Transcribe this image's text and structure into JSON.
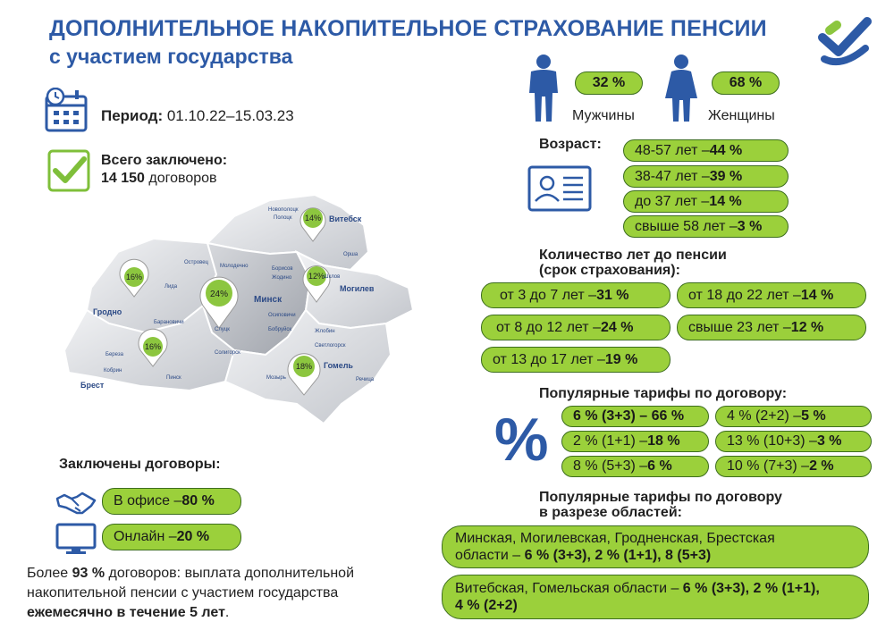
{
  "title": {
    "line1": "ДОПОЛНИТЕЛЬНОЕ НАКОПИТЕЛЬНОЕ СТРАХОВАНИЕ ПЕНСИИ",
    "line2": "с участием государства"
  },
  "colors": {
    "accent_blue": "#2d5aa6",
    "pill_green": "#9bd03b",
    "pill_border": "#3d6e1e",
    "logo_green": "#8cc63f"
  },
  "period": {
    "label": "Период:",
    "value": " 01.10.22–15.03.23",
    "icon": "calendar-icon"
  },
  "total": {
    "label": "Всего заключено:",
    "count": "14 150",
    "unit": " договоров",
    "icon": "checkmark-icon"
  },
  "gender": {
    "men": {
      "percent": "32 %",
      "label": "Мужчины",
      "icon": "man-icon"
    },
    "women": {
      "percent": "68 %",
      "label": "Женщины",
      "icon": "woman-icon"
    }
  },
  "age": {
    "label": "Возраст:",
    "icon": "id-card-icon",
    "items": [
      {
        "text": "48-57 лет  – ",
        "value": "44 %"
      },
      {
        "text": "38-47 лет – ",
        "value": "39 %"
      },
      {
        "text": "до 37 лет – ",
        "value": "14 %"
      },
      {
        "text": "свыше 58 лет – ",
        "value": "3 %"
      }
    ]
  },
  "years": {
    "label_line1": "Количество лет до пенсии",
    "label_line2": "(срок страхования):",
    "items": [
      {
        "text": "от 3 до 7 лет – ",
        "value": "31 %"
      },
      {
        "text": "от 18 до 22 лет – ",
        "value": "14 %"
      },
      {
        "text": "от 8 до 12 лет – ",
        "value": "24 %"
      },
      {
        "text": "свыше 23 лет – ",
        "value": "12 %"
      },
      {
        "text": "от 13 до 17 лет – ",
        "value": "19 %"
      }
    ]
  },
  "tariffs": {
    "label": "Популярные тарифы по договору:",
    "icon": "percent-icon",
    "symbol": "%",
    "items": [
      {
        "text": "6 % (3+3) – 66 %",
        "bold_all": true
      },
      {
        "text": "4 % (2+2) – ",
        "value": "5 %"
      },
      {
        "text": "2 % (1+1) – ",
        "value": "18 %"
      },
      {
        "text": "13 % (10+3) – ",
        "value": "3 %"
      },
      {
        "text": "8 % (5+3) – ",
        "value": "6 %"
      },
      {
        "text": "10 % (7+3) – ",
        "value": "2 %"
      }
    ]
  },
  "regional": {
    "label_line1": "Популярные тарифы по договору",
    "label_line2": "в разрезе областей:",
    "group1": {
      "line1": "Минская, Могилевская, Гродненская, Брестская",
      "line2_prefix": "области – ",
      "line2_values": "6 %  (3+3), 2 % (1+1), 8 (5+3)"
    },
    "group2": {
      "line1_prefix": "Витебская, Гомельская области – ",
      "line1_values": "6 %  (3+3), 2 % (1+1),",
      "line2_values": "4 % (2+2)"
    }
  },
  "contracts": {
    "label": "Заключены договоры:",
    "office": {
      "text": "В офисе – ",
      "value": "80 %",
      "icon": "handshake-icon"
    },
    "online": {
      "text": "Онлайн – ",
      "value": "20 %",
      "icon": "monitor-icon"
    }
  },
  "footer": {
    "prefix": "Более ",
    "percent": "93 %",
    "rest1": " договоров:  выплата дополнительной",
    "line2": "накопительной пенсии с участием государства",
    "line3_bold": "ежемесячно в течение 5 лет",
    "line3_end": "."
  },
  "map": {
    "regions": [
      {
        "name": "Витебск",
        "percent": "14%"
      },
      {
        "name": "Минск",
        "percent": "24%"
      },
      {
        "name": "Могилев",
        "percent": "12%"
      },
      {
        "name": "Гродно",
        "percent": "16%"
      },
      {
        "name": "Брест",
        "percent": "16%"
      },
      {
        "name": "Гомель",
        "percent": "18%"
      }
    ],
    "towns": [
      "Новополоцк",
      "Полоцк",
      "Орша",
      "Шклов",
      "Борисов",
      "Жодино",
      "Молодечно",
      "Островец",
      "Лида",
      "Барановичи",
      "Береза",
      "Кобрин",
      "Пинск",
      "Слуцк",
      "Солигорск",
      "Осиповичи",
      "Бобруйск",
      "Жлобин",
      "Светлогорск",
      "Мозырь",
      "Речица"
    ]
  }
}
